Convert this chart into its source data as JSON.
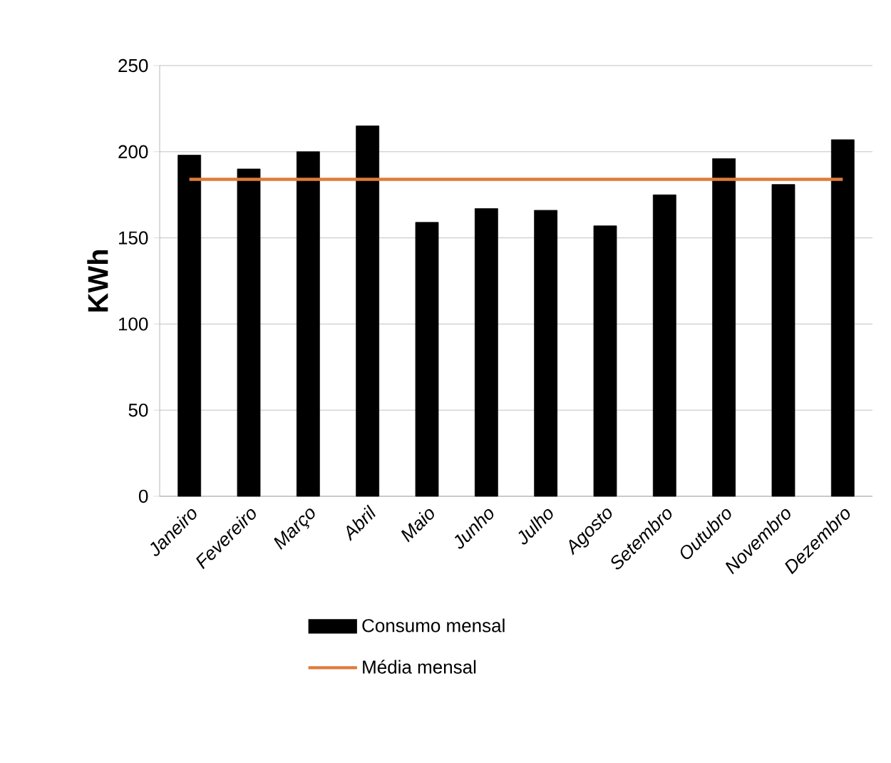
{
  "chart_data": {
    "type": "bar",
    "ylabel": "KWh",
    "categories": [
      "Janeiro",
      "Fevereiro",
      "Março",
      "Abril",
      "Maio",
      "Junho",
      "Julho",
      "Agosto",
      "Setembro",
      "Outubro",
      "Novembro",
      "Dezembro"
    ],
    "series": [
      {
        "name": "Consumo mensal",
        "color": "#000000",
        "values": [
          198,
          190,
          200,
          215,
          159,
          167,
          166,
          157,
          175,
          196,
          181,
          207
        ]
      },
      {
        "name": "Média mensal",
        "type": "line",
        "color": "#e07b39",
        "values": [
          184,
          184,
          184,
          184,
          184,
          184,
          184,
          184,
          184,
          184,
          184,
          184
        ]
      }
    ],
    "ylim": [
      0,
      250
    ],
    "yticks": [
      0,
      50,
      100,
      150,
      200,
      250
    ],
    "grid": "y",
    "legend": "bottom",
    "marker": "none"
  }
}
